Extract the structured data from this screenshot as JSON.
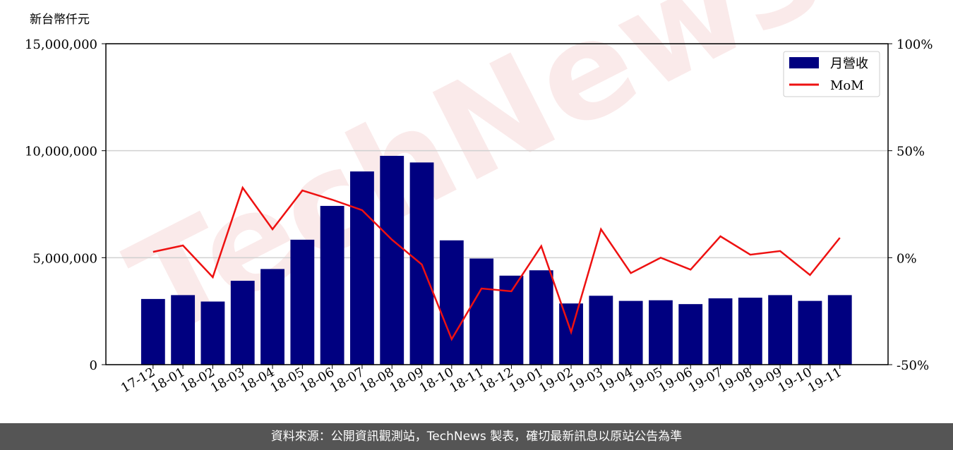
{
  "chart_data": {
    "type": "bar-line",
    "y_label": "新台幣仟元",
    "watermark": "TechNews",
    "categories": [
      "17-12",
      "18-01",
      "18-02",
      "18-03",
      "18-04",
      "18-05",
      "18-06",
      "18-07",
      "18-08",
      "18-09",
      "18-10",
      "18-11",
      "18-12",
      "19-01",
      "19-02",
      "19-03",
      "19-04",
      "19-05",
      "19-06",
      "19-07",
      "19-08",
      "19-09",
      "19-10",
      "19-11"
    ],
    "series": [
      {
        "name": "月營收",
        "color": "#000080",
        "values": [
          3070000,
          3250000,
          2950000,
          3920000,
          4470000,
          5840000,
          7420000,
          9030000,
          9760000,
          9450000,
          5810000,
          4960000,
          4160000,
          4410000,
          2860000,
          3220000,
          2980000,
          3010000,
          2830000,
          3100000,
          3130000,
          3250000,
          2980000,
          3250000
        ]
      },
      {
        "name": "MoM",
        "color": "#ee1111",
        "axis": "y2",
        "values": [
          2.7,
          5.7,
          -9.1,
          32.7,
          13.3,
          31.4,
          27.1,
          22.2,
          8.4,
          -3.2,
          -38.1,
          -14.4,
          -15.7,
          5.4,
          -34.8,
          13.3,
          -7.2,
          0,
          -5.6,
          10.0,
          1.4,
          3.1,
          -8.1,
          9.3
        ]
      }
    ],
    "ylim": [
      0,
      15000000
    ],
    "yticks": [
      {
        "value": 0,
        "label": "0"
      },
      {
        "value": 5000000,
        "label": "5,000,000"
      },
      {
        "value": 10000000,
        "label": "10,000,000"
      },
      {
        "value": 15000000,
        "label": "15,000,000"
      }
    ],
    "y2lim": [
      -50,
      100
    ],
    "y2ticks": [
      {
        "value": -50,
        "label": "-50%"
      },
      {
        "value": 0,
        "label": "0%"
      },
      {
        "value": 50,
        "label": "50%"
      },
      {
        "value": 100,
        "label": "100%"
      }
    ],
    "grid": true,
    "legend": "upper right",
    "footer": "資料來源：公開資訊觀測站，TechNews 製表，確切最新訊息以原站公告為準"
  }
}
